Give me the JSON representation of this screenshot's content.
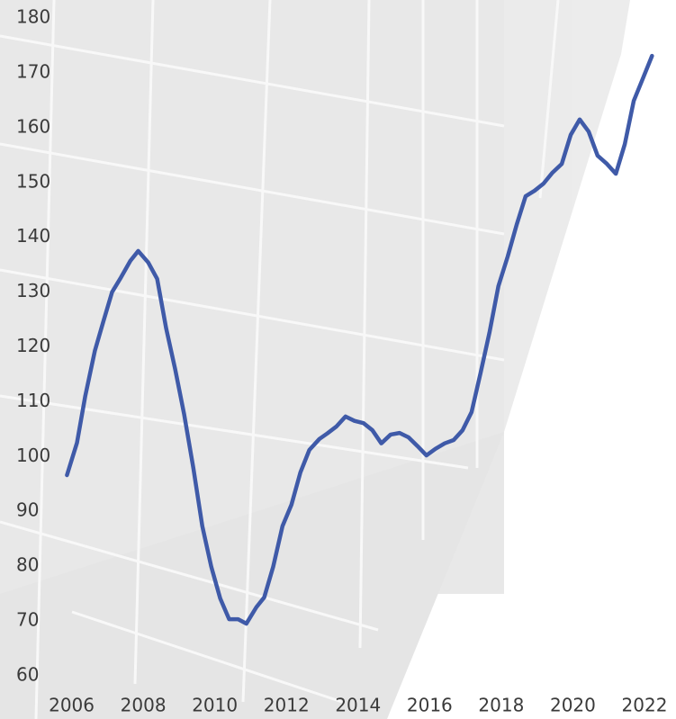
{
  "chart_data": {
    "type": "line",
    "x": [
      2005.87,
      2006.15,
      2006.38,
      2006.65,
      2006.88,
      2007.13,
      2007.38,
      2007.64,
      2007.86,
      2008.14,
      2008.39,
      2008.64,
      2008.89,
      2009.14,
      2009.4,
      2009.65,
      2009.9,
      2010.15,
      2010.4,
      2010.65,
      2010.88,
      2011.16,
      2011.38,
      2011.63,
      2011.89,
      2012.14,
      2012.39,
      2012.64,
      2012.92,
      2013.14,
      2013.4,
      2013.65,
      2013.9,
      2014.15,
      2014.4,
      2014.65,
      2014.91,
      2015.16,
      2015.41,
      2015.66,
      2015.91,
      2016.16,
      2016.42,
      2016.67,
      2016.92,
      2017.17,
      2017.42,
      2017.67,
      2017.92,
      2018.18,
      2018.43,
      2018.68,
      2018.93,
      2019.18,
      2019.43,
      2019.69,
      2019.94,
      2020.19,
      2020.44,
      2020.69,
      2020.95,
      2021.2,
      2021.45,
      2021.7,
      2021.95,
      2022.21
    ],
    "series": [
      {
        "color": "#3f5aa8",
        "values": [
          96.6,
          102.5,
          111,
          119.3,
          124.5,
          130,
          132.7,
          135.7,
          137.5,
          135.4,
          132.4,
          123.4,
          116,
          107.8,
          97.9,
          87.3,
          79.9,
          74.1,
          70.3,
          70.3,
          69.5,
          72.5,
          74.3,
          79.9,
          87.3,
          91.2,
          97.1,
          101.2,
          103.2,
          104.2,
          105.5,
          107.3,
          106.5,
          106.1,
          104.8,
          102.4,
          104,
          104.3,
          103.5,
          101.9,
          100.2,
          101.4,
          102.4,
          103,
          104.8,
          108.1,
          115.2,
          122.6,
          131.1,
          136.5,
          142.3,
          147.5,
          148.5,
          149.8,
          151.8,
          153.4,
          158.7,
          161.5,
          159.3,
          154.9,
          153.4,
          151.6,
          157,
          164.9,
          168.9,
          173.1
        ]
      }
    ],
    "xlim": [
      2004,
      2022.88
    ],
    "ylim": [
      52.1,
      183.3
    ],
    "xticks": [
      2006,
      2008,
      2010,
      2012,
      2014,
      2016,
      2018,
      2020,
      2022
    ],
    "yticks": [
      60,
      70,
      80,
      90,
      100,
      110,
      120,
      130,
      140,
      150,
      160,
      170,
      180
    ]
  }
}
